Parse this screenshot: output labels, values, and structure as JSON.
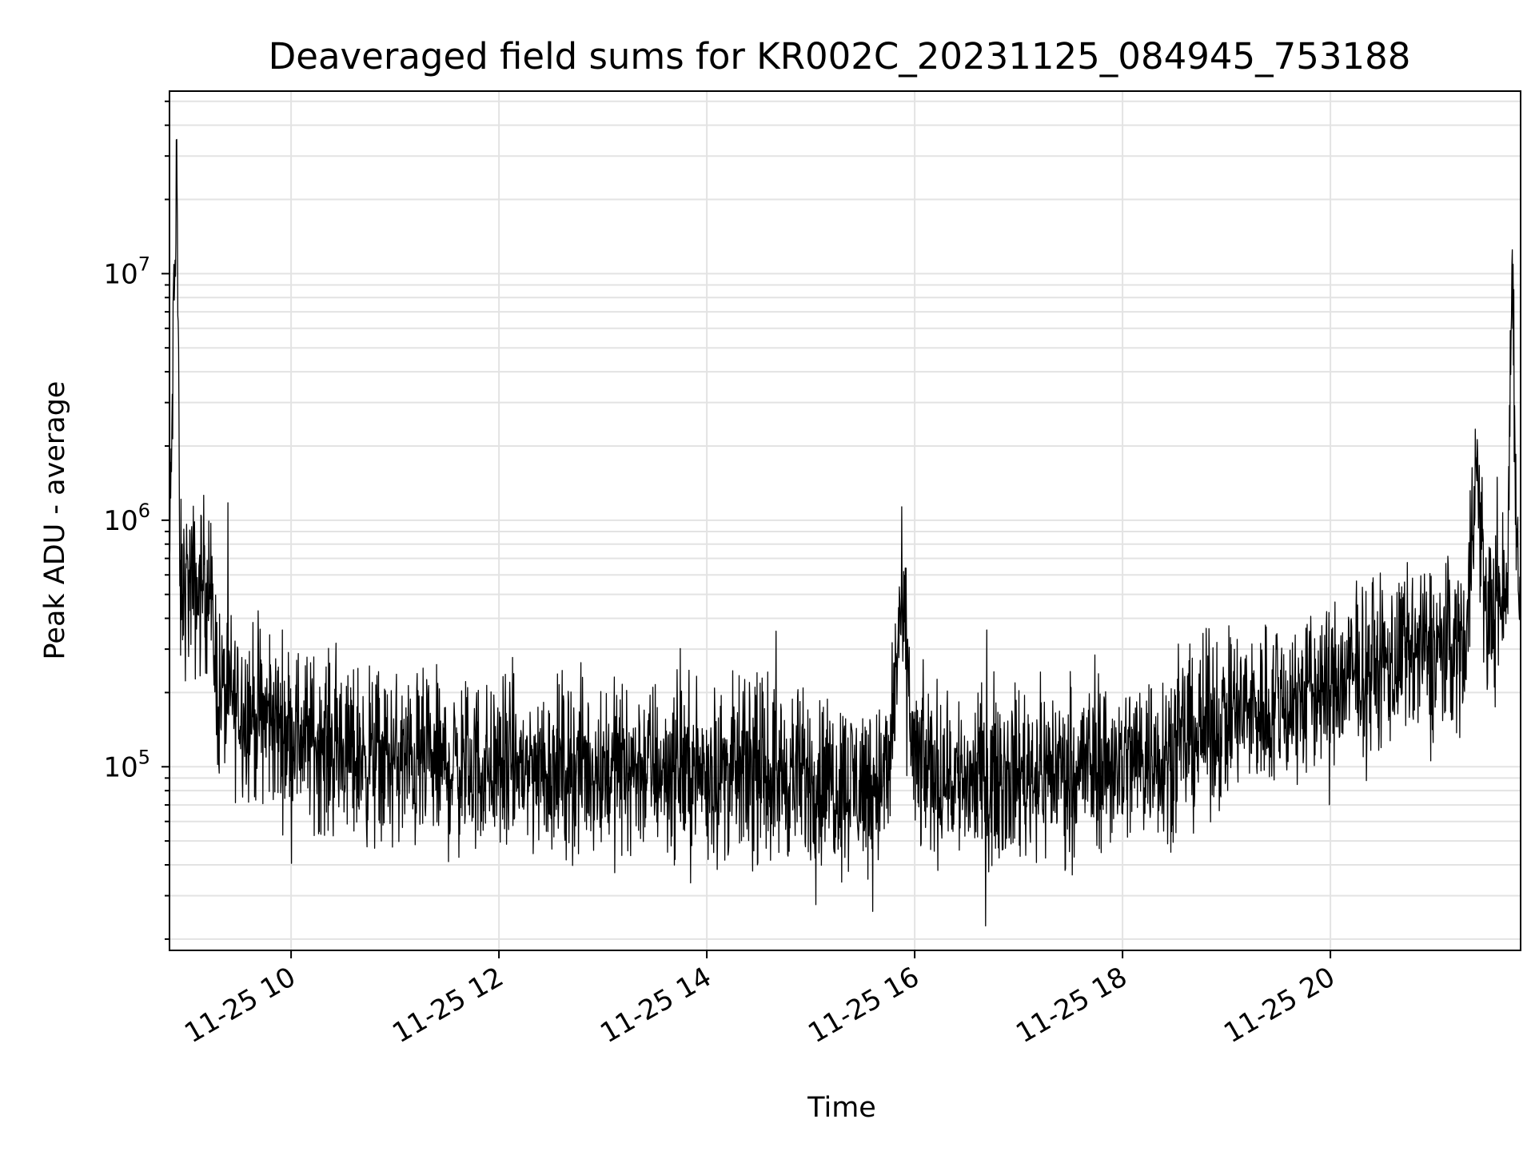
{
  "chart_data": {
    "type": "line",
    "title": "Deaveraged field sums for KR002C_20231125_084945_753188",
    "xlabel": "Time",
    "ylabel": "Peak ADU - average",
    "x_range_hours": [
      8.83,
      21.83
    ],
    "ylim": [
      18000,
      55000000
    ],
    "yscale": "log",
    "grid": true,
    "line_color": "#000000",
    "x_ticks": [
      {
        "value": 10,
        "label": "11-25 10"
      },
      {
        "value": 12,
        "label": "11-25 12"
      },
      {
        "value": 14,
        "label": "11-25 14"
      },
      {
        "value": 16,
        "label": "11-25 16"
      },
      {
        "value": 18,
        "label": "11-25 18"
      },
      {
        "value": 20,
        "label": "11-25 20"
      }
    ],
    "y_ticks": [
      {
        "value": 100000,
        "base": "10",
        "exp": "5"
      },
      {
        "value": 1000000,
        "base": "10",
        "exp": "6"
      },
      {
        "value": 10000000,
        "base": "10",
        "exp": "7"
      }
    ],
    "series": [
      {
        "x": [
          8.83,
          8.9,
          8.93,
          9.0,
          9.1,
          9.2,
          9.3,
          9.5,
          9.7,
          10.0,
          10.5,
          11.0,
          11.5,
          12.0,
          12.5,
          13.0,
          13.5,
          14.0,
          14.5,
          15.0,
          15.5,
          15.75,
          15.85,
          15.9,
          16.0,
          16.5,
          17.0,
          17.5,
          18.0,
          18.5,
          19.0,
          19.5,
          20.0,
          20.5,
          21.0,
          21.3,
          21.4,
          21.5,
          21.7,
          21.75,
          21.8
        ],
        "y": [
          600000,
          35000000,
          500000,
          550000,
          500000,
          600000,
          200000,
          180000,
          160000,
          140000,
          115000,
          105000,
          100000,
          100000,
          100000,
          100000,
          100000,
          95000,
          95000,
          90000,
          85000,
          90000,
          400000,
          350000,
          100000,
          90000,
          95000,
          100000,
          105000,
          120000,
          160000,
          180000,
          210000,
          260000,
          300000,
          320000,
          1800000,
          400000,
          500000,
          12500000,
          600000
        ]
      }
    ]
  }
}
